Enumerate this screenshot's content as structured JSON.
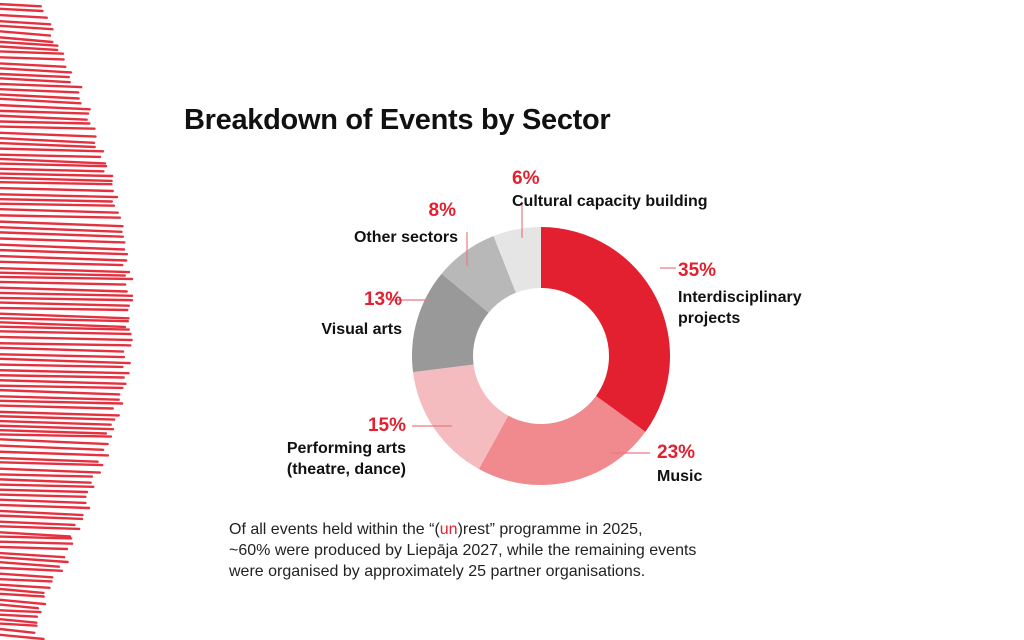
{
  "colors": {
    "accent": "#e3202f",
    "text": "#111111"
  },
  "decoration": {
    "name": "red-scribble-decoration"
  },
  "chart_data": {
    "type": "pie",
    "subtype": "donut",
    "title": "Breakdown of Events by Sector",
    "unit": "%",
    "slices": [
      {
        "label_lines": [
          "Interdisciplinary",
          "projects"
        ],
        "value": 35,
        "percent_label": "35%",
        "color": "#e3202f"
      },
      {
        "label_lines": [
          "Music"
        ],
        "value": 23,
        "percent_label": "23%",
        "color": "#f08a8f"
      },
      {
        "label_lines": [
          "Performing arts",
          "(theatre, dance)"
        ],
        "value": 15,
        "percent_label": "15%",
        "color": "#f5bcbf"
      },
      {
        "label_lines": [
          "Visual arts"
        ],
        "value": 13,
        "percent_label": "13%",
        "color": "#999999"
      },
      {
        "label_lines": [
          "Other sectors"
        ],
        "value": 8,
        "percent_label": "8%",
        "color": "#b8b8b8"
      },
      {
        "label_lines": [
          "Cultural capacity building"
        ],
        "value": 6,
        "percent_label": "6%",
        "color": "#e5e5e5"
      }
    ]
  },
  "footnote": {
    "line1_before": "Of all events held within the “(",
    "line1_highlight": "un",
    "line1_after": ")rest” programme in 2025,",
    "line2": "~60% were produced by Liepāja 2027, while the remaining events",
    "line3": "were organised by approximately 25 partner organisations."
  }
}
